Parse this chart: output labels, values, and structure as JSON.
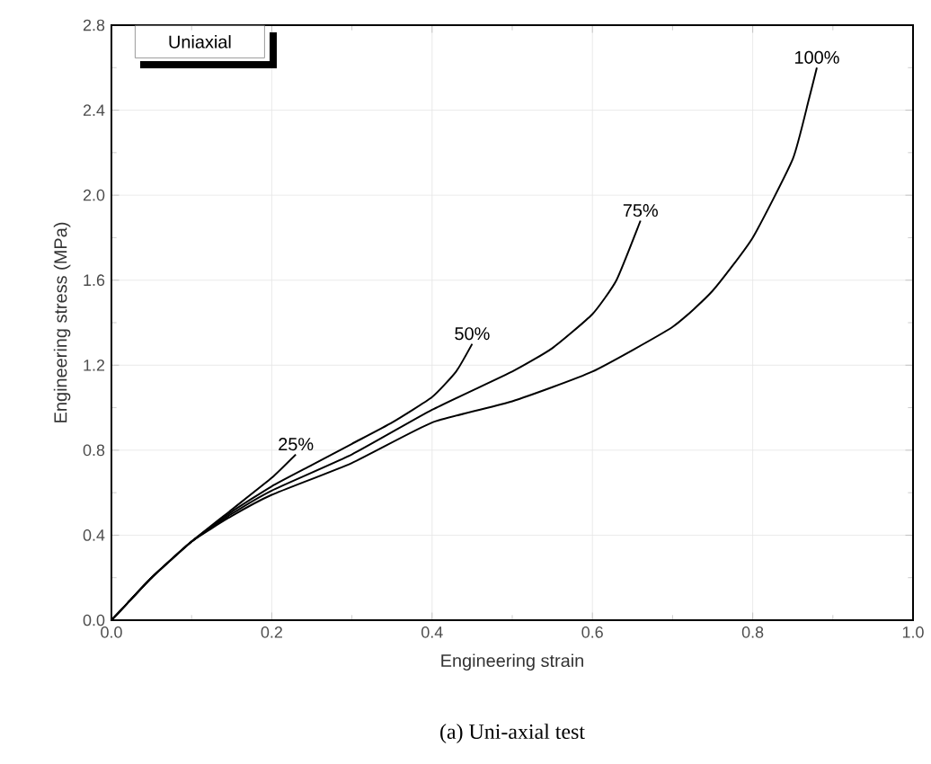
{
  "chart_data": {
    "type": "line",
    "xlabel": "Engineering  strain",
    "ylabel": "Engineering  stress  (MPa)",
    "annotations": [
      "Uniaxial",
      "(a) Uni-axial test"
    ],
    "xlim": [
      0,
      1.0
    ],
    "xticks": [
      {
        "value": 0,
        "label": "0.0"
      },
      0.2,
      0.4,
      0.6,
      0.8,
      {
        "value": 1,
        "label": "1.0"
      }
    ],
    "ylim": [
      0,
      2.8
    ],
    "yticks": [
      {
        "value": 0,
        "label": "0.0"
      },
      0.4,
      0.8,
      1.2,
      1.6,
      {
        "value": 2,
        "label": "2.0"
      },
      2.4,
      2.8
    ],
    "grid": true,
    "line_style": "solid",
    "series": [
      {
        "name": "25%",
        "color": "#000000",
        "x": [
          0,
          0.02,
          0.05,
          0.1,
          0.15,
          0.2,
          0.23
        ],
        "values": [
          0,
          0.08,
          0.2,
          0.37,
          0.52,
          0.67,
          0.78
        ]
      },
      {
        "name": "50%",
        "color": "#000000",
        "x": [
          0,
          0.02,
          0.05,
          0.1,
          0.15,
          0.2,
          0.25,
          0.3,
          0.35,
          0.4,
          0.43,
          0.45
        ],
        "values": [
          0,
          0.08,
          0.2,
          0.37,
          0.51,
          0.63,
          0.73,
          0.83,
          0.93,
          1.05,
          1.17,
          1.3
        ]
      },
      {
        "name": "75%",
        "color": "#000000",
        "x": [
          0,
          0.02,
          0.05,
          0.1,
          0.15,
          0.2,
          0.3,
          0.4,
          0.5,
          0.55,
          0.6,
          0.63,
          0.66
        ],
        "values": [
          0,
          0.08,
          0.2,
          0.37,
          0.5,
          0.61,
          0.78,
          0.99,
          1.17,
          1.28,
          1.44,
          1.6,
          1.88
        ]
      },
      {
        "name": "100%",
        "color": "#000000",
        "x": [
          0,
          0.02,
          0.05,
          0.1,
          0.15,
          0.2,
          0.3,
          0.4,
          0.5,
          0.6,
          0.7,
          0.75,
          0.8,
          0.85,
          0.87,
          0.88
        ],
        "values": [
          0,
          0.08,
          0.2,
          0.37,
          0.49,
          0.59,
          0.74,
          0.93,
          1.03,
          1.17,
          1.38,
          1.55,
          1.8,
          2.17,
          2.45,
          2.6
        ]
      }
    ]
  }
}
